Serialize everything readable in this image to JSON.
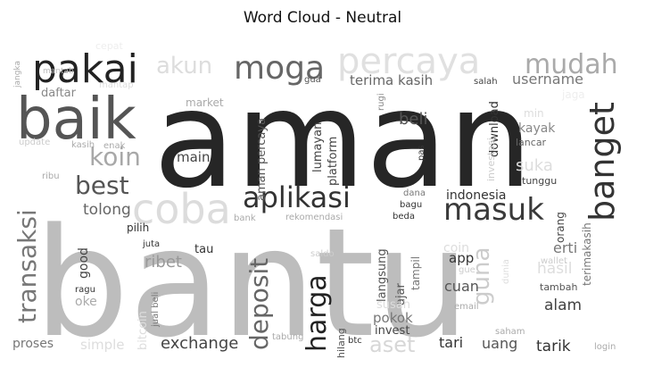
{
  "chart_data": {
    "type": "wordcloud",
    "title": "Word Cloud - Neutral",
    "colormap": "greys",
    "words": [
      {
        "text": "bantu",
        "weight": 1.0
      },
      {
        "text": "aman",
        "weight": 0.93
      },
      {
        "text": "baik",
        "weight": 0.4
      },
      {
        "text": "coba",
        "weight": 0.34
      },
      {
        "text": "pakai",
        "weight": 0.31
      },
      {
        "text": "percaya",
        "weight": 0.3
      },
      {
        "text": "banget",
        "weight": 0.27
      },
      {
        "text": "moga",
        "weight": 0.25
      },
      {
        "text": "mudah",
        "weight": 0.22
      },
      {
        "text": "aplikasi",
        "weight": 0.24
      },
      {
        "text": "masuk",
        "weight": 0.24
      },
      {
        "text": "koin",
        "weight": 0.2
      },
      {
        "text": "best",
        "weight": 0.2
      },
      {
        "text": "harga",
        "weight": 0.21
      },
      {
        "text": "transaksi",
        "weight": 0.23
      },
      {
        "text": "deposit",
        "weight": 0.22
      },
      {
        "text": "guna",
        "weight": 0.21
      },
      {
        "text": "akun",
        "weight": 0.17
      },
      {
        "text": "aset",
        "weight": 0.16
      },
      {
        "text": "username",
        "weight": 0.11
      },
      {
        "text": "terima kasih",
        "weight": 0.1
      },
      {
        "text": "beli",
        "weight": 0.12
      },
      {
        "text": "ribet",
        "weight": 0.12
      },
      {
        "text": "exchange",
        "weight": 0.13
      },
      {
        "text": "tarik",
        "weight": 0.12
      },
      {
        "text": "tolong",
        "weight": 0.11
      },
      {
        "text": "alam",
        "weight": 0.11
      },
      {
        "text": "cuan",
        "weight": 0.1
      },
      {
        "text": "main",
        "weight": 0.1
      },
      {
        "text": "app",
        "weight": 0.1
      },
      {
        "text": "erti",
        "weight": 0.1
      },
      {
        "text": "uang",
        "weight": 0.1
      },
      {
        "text": "tari",
        "weight": 0.1
      },
      {
        "text": "pokok",
        "weight": 0.1
      },
      {
        "text": "indonesia",
        "weight": 0.09
      },
      {
        "text": "download",
        "weight": 0.09
      },
      {
        "text": "platform",
        "weight": 0.08
      },
      {
        "text": "aman percaya",
        "weight": 0.08
      },
      {
        "text": "lumayan",
        "weight": 0.08
      },
      {
        "text": "kayak",
        "weight": 0.08
      },
      {
        "text": "suka",
        "weight": 0.09
      },
      {
        "text": "proses",
        "weight": 0.08
      },
      {
        "text": "simple",
        "weight": 0.08
      },
      {
        "text": "good",
        "weight": 0.08
      },
      {
        "text": "oke",
        "weight": 0.09
      },
      {
        "text": "langsung",
        "weight": 0.08
      },
      {
        "text": "ajar",
        "weight": 0.08
      },
      {
        "text": "orang",
        "weight": 0.08
      },
      {
        "text": "terimakasih",
        "weight": 0.08
      },
      {
        "text": "hasil",
        "weight": 0.08
      },
      {
        "text": "invest",
        "weight": 0.07
      },
      {
        "text": "susah",
        "weight": 0.07
      },
      {
        "text": "tampil",
        "weight": 0.07
      },
      {
        "text": "bitcoin",
        "weight": 0.07
      },
      {
        "text": "tau",
        "weight": 0.07
      },
      {
        "text": "pilih",
        "weight": 0.07
      },
      {
        "text": "hilang",
        "weight": 0.07
      },
      {
        "text": "tunggu",
        "weight": 0.06
      },
      {
        "text": "lancar",
        "weight": 0.06
      },
      {
        "text": "tambah",
        "weight": 0.06
      },
      {
        "text": "daftar",
        "weight": 0.06
      },
      {
        "text": "market",
        "weight": 0.06
      },
      {
        "text": "investasi",
        "weight": 0.06
      },
      {
        "text": "min",
        "weight": 0.06
      },
      {
        "text": "salah",
        "weight": 0.05
      },
      {
        "text": "bagu",
        "weight": 0.05
      },
      {
        "text": "dana",
        "weight": 0.05
      },
      {
        "text": "coin",
        "weight": 0.06
      },
      {
        "text": "wallet",
        "weight": 0.05
      },
      {
        "text": "pas",
        "weight": 0.05
      },
      {
        "text": "gua",
        "weight": 0.05
      },
      {
        "text": "rugi",
        "weight": 0.05
      },
      {
        "text": "kasih",
        "weight": 0.05
      },
      {
        "text": "enak",
        "weight": 0.05
      },
      {
        "text": "update",
        "weight": 0.05
      },
      {
        "text": "ribu",
        "weight": 0.05
      },
      {
        "text": "juta",
        "weight": 0.05
      },
      {
        "text": "jual beli",
        "weight": 0.05
      },
      {
        "text": "ragu",
        "weight": 0.05
      },
      {
        "text": "bank",
        "weight": 0.05
      },
      {
        "text": "rekomendasi",
        "weight": 0.05
      },
      {
        "text": "beda",
        "weight": 0.05
      },
      {
        "text": "saldo",
        "weight": 0.05
      },
      {
        "text": "email",
        "weight": 0.05
      },
      {
        "text": "gue",
        "weight": 0.05
      },
      {
        "text": "dunia",
        "weight": 0.05
      },
      {
        "text": "saham",
        "weight": 0.05
      },
      {
        "text": "login",
        "weight": 0.05
      },
      {
        "text": "tabung",
        "weight": 0.05
      },
      {
        "text": "btc",
        "weight": 0.05
      },
      {
        "text": "mantab",
        "weight": 0.04
      },
      {
        "text": "mantap",
        "weight": 0.04
      },
      {
        "text": "jangka",
        "weight": 0.04
      },
      {
        "text": "cepat",
        "weight": 0.04
      },
      {
        "text": "jaga",
        "weight": 0.04
      }
    ]
  }
}
